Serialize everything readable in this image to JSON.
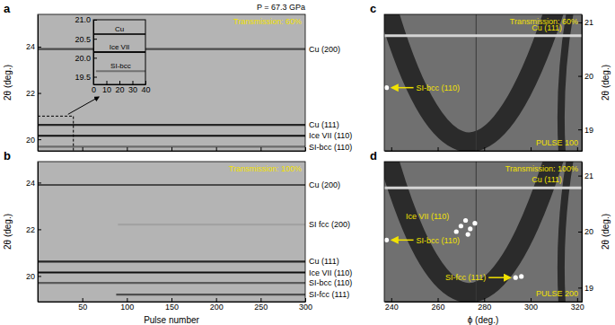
{
  "chart_data": [
    {
      "panel": "a",
      "type": "line",
      "title": "P = 67.3 GPa",
      "annotations": [
        "Transmission: 60%"
      ],
      "y_label": "2θ (deg.)",
      "xlim": [
        0,
        300
      ],
      "xticks": [
        50,
        100,
        150,
        200,
        250,
        300
      ],
      "ylim": [
        19.5,
        25.4
      ],
      "yticks": [
        20,
        22,
        24
      ],
      "tick_labels": "y",
      "series": [
        {
          "name": "Cu (200)",
          "color": "#4a4a4a",
          "x": [
            0,
            300
          ],
          "values": [
            23.9,
            23.9
          ]
        },
        {
          "name": "Cu (111)",
          "color": "#262626",
          "x": [
            0,
            300
          ],
          "values": [
            20.62,
            20.62
          ]
        },
        {
          "name": "Ice VII (110)",
          "color": "#0e0e0e",
          "x": [
            0,
            300
          ],
          "values": [
            20.15,
            20.15
          ]
        },
        {
          "name": "SI-bcc (110)",
          "color": "#6a6a6a",
          "x": [
            0,
            300
          ],
          "values": [
            19.68,
            19.68
          ]
        }
      ]
    },
    {
      "type": "line",
      "xlim": [
        0,
        40
      ],
      "xticks": [
        0,
        10,
        20,
        30,
        40
      ],
      "ylim": [
        19.3,
        21.0
      ],
      "yticks": [
        19.5,
        {
          "value": 20,
          "label": "20.0"
        },
        20.5,
        {
          "value": 21,
          "label": "21.0"
        }
      ],
      "series": [
        {
          "name": "Cu",
          "color": "#262626",
          "x": [
            0,
            40
          ],
          "values": [
            20.62,
            20.62
          ]
        },
        {
          "name": "Ice VII",
          "color": "#0e0e0e",
          "x": [
            0,
            40
          ],
          "values": [
            20.15,
            20.15
          ]
        },
        {
          "name": "SI-bcc",
          "color": "#707070",
          "x": [
            2,
            40
          ],
          "values": [
            19.65,
            19.65
          ]
        }
      ]
    },
    {
      "panel": "b",
      "type": "line",
      "annotations": [
        "Transmission: 100%"
      ],
      "x_label": "Pulse number",
      "y_label": "2θ (deg.)",
      "xlim": [
        0,
        300
      ],
      "xticks": [
        50,
        100,
        150,
        200,
        250,
        300
      ],
      "ylim": [
        18.9,
        24.9
      ],
      "yticks": [
        20,
        22,
        24
      ],
      "series": [
        {
          "name": "Cu (200)",
          "color": "#4a4a4a",
          "x": [
            0,
            300
          ],
          "values": [
            23.9,
            23.9
          ]
        },
        {
          "name": "SI fcc (200)",
          "color": "#a2a2a2",
          "x": [
            90,
            300
          ],
          "values": [
            22.2,
            22.2
          ]
        },
        {
          "name": "Cu (111)",
          "color": "#262626",
          "x": [
            0,
            300
          ],
          "values": [
            20.62,
            20.62
          ]
        },
        {
          "name": "Ice VII (110)",
          "color": "#0e0e0e",
          "x": [
            0,
            300
          ],
          "values": [
            20.15,
            20.15
          ]
        },
        {
          "name": "SI-bcc (110)",
          "color": "#5a5a5a",
          "x": [
            0,
            300
          ],
          "values": [
            19.7,
            19.7
          ]
        },
        {
          "name": "SI-fcc (111)",
          "color": "#4e4e4e",
          "x": [
            88,
            300
          ],
          "values": [
            19.2,
            19.2
          ]
        }
      ]
    },
    {
      "panel": "c",
      "type": "scatter",
      "annotations": [
        "Transmission: 60%",
        "PULSE 100"
      ],
      "y_label": "2θ (deg.)",
      "xlim": [
        237,
        322
      ],
      "xticks": [
        240,
        260,
        280,
        300,
        320
      ],
      "ylim": [
        18.6,
        21.15
      ],
      "yticks": [
        19,
        20,
        21
      ],
      "tick_labels": "y",
      "series": [
        {
          "name": "Cu (111)",
          "type": "line",
          "color": "#d4d4d4",
          "x": [
            237,
            322
          ],
          "values": [
            20.75,
            20.75
          ]
        },
        {
          "name": "SI-bcc (110)",
          "color": "#ffffff",
          "marker": "circle",
          "x": [
            238
          ],
          "values": [
            19.78
          ]
        }
      ]
    },
    {
      "panel": "d",
      "type": "scatter",
      "annotations": [
        "Transmission: 100%",
        "PULSE 200"
      ],
      "x_label": "ϕ (deg.)",
      "y_label": "2θ (deg.)",
      "xlim": [
        237,
        322
      ],
      "xticks": [
        240,
        260,
        280,
        300,
        320
      ],
      "ylim": [
        18.75,
        21.25
      ],
      "yticks": [
        19,
        20,
        21
      ],
      "series": [
        {
          "name": "Cu (111)",
          "type": "line",
          "color": "#d4d4d4",
          "x": [
            237,
            322
          ],
          "values": [
            20.78,
            20.78
          ]
        },
        {
          "name": "Ice VII (110)",
          "color": "#ffffff",
          "marker": "circle",
          "x": [
            268,
            270,
            272,
            273,
            274,
            276
          ],
          "values": [
            20.0,
            20.1,
            20.2,
            19.95,
            20.05,
            20.15
          ]
        },
        {
          "name": "SI-bcc (110)",
          "color": "#ffffff",
          "marker": "circle",
          "x": [
            238
          ],
          "values": [
            19.85
          ]
        },
        {
          "name": "SI-fcc (111)",
          "color": "#ffffff",
          "marker": "circle",
          "x": [
            293.5,
            296
          ],
          "values": [
            19.18,
            19.2
          ]
        }
      ]
    }
  ]
}
